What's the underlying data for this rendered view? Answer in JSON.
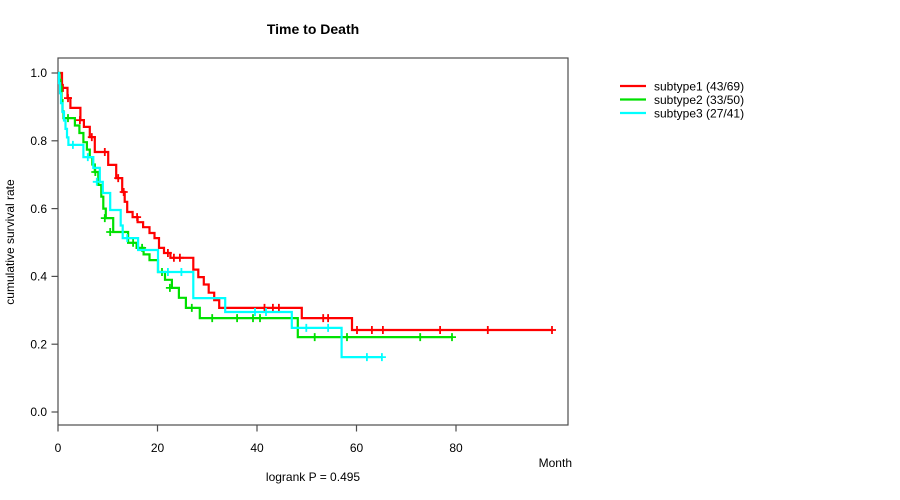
{
  "title": "Time to Death",
  "annotation": "logrank P = 0.495",
  "axes": {
    "x_label": "Month",
    "y_label": "cumulative survival rate"
  },
  "legend": {
    "position": "right-outside",
    "items": [
      {
        "label": "subtype1 (43/69)",
        "color": "#FF0000"
      },
      {
        "label": "subtype2 (33/50)",
        "color": "#00E000"
      },
      {
        "label": "subtype3 (27/41)",
        "color": "#00FFFF"
      }
    ]
  },
  "chart_data": {
    "type": "line",
    "variant": "kaplan-meier-step",
    "title": "Time to Death",
    "xlabel": "Month",
    "ylabel": "cumulative survival rate",
    "xlim": [
      0,
      102.5
    ],
    "ylim": [
      0,
      1.04
    ],
    "x_ticks": [
      0,
      20,
      40,
      60,
      80
    ],
    "y_ticks": [
      1.0,
      0.8,
      0.6,
      0.4,
      0.2,
      0.0
    ],
    "grid": false,
    "legend_position": "right-outside",
    "annotation": "logrank P = 0.495",
    "series": [
      {
        "name": "subtype1 (43/69)",
        "color": "#FF0000",
        "events": 43,
        "n": 69,
        "steps": [
          [
            0,
            1.0
          ],
          [
            0.8,
            0.956
          ],
          [
            1.9,
            0.926
          ],
          [
            2.5,
            0.897
          ],
          [
            4.5,
            0.861
          ],
          [
            5.2,
            0.841
          ],
          [
            6.4,
            0.811
          ],
          [
            7.4,
            0.767
          ],
          [
            10.1,
            0.729
          ],
          [
            11.7,
            0.69
          ],
          [
            12.9,
            0.649
          ],
          [
            13.4,
            0.62
          ],
          [
            13.9,
            0.59
          ],
          [
            15.0,
            0.575
          ],
          [
            16.0,
            0.56
          ],
          [
            17.1,
            0.545
          ],
          [
            18.4,
            0.528
          ],
          [
            19.4,
            0.513
          ],
          [
            20.3,
            0.484
          ],
          [
            21.3,
            0.469
          ],
          [
            22.6,
            0.455
          ],
          [
            27.2,
            0.42
          ],
          [
            28.2,
            0.398
          ],
          [
            29.3,
            0.376
          ],
          [
            30.3,
            0.352
          ],
          [
            31.4,
            0.33
          ],
          [
            32.4,
            0.307
          ],
          [
            49.0,
            0.277
          ],
          [
            59.1,
            0.242
          ]
        ],
        "end_time": 99.5,
        "censors": [
          [
            1.0,
            0.956
          ],
          [
            2.0,
            0.926
          ],
          [
            4.4,
            0.861
          ],
          [
            6.8,
            0.811
          ],
          [
            9.4,
            0.767
          ],
          [
            12.1,
            0.69
          ],
          [
            13.2,
            0.649
          ],
          [
            15.9,
            0.575
          ],
          [
            22.1,
            0.469
          ],
          [
            23.3,
            0.455
          ],
          [
            24.5,
            0.455
          ],
          [
            41.5,
            0.307
          ],
          [
            43.2,
            0.307
          ],
          [
            44.4,
            0.307
          ],
          [
            53.3,
            0.277
          ],
          [
            54.3,
            0.277
          ],
          [
            60.1,
            0.242
          ],
          [
            63.1,
            0.242
          ],
          [
            65.3,
            0.242
          ],
          [
            76.8,
            0.242
          ],
          [
            86.4,
            0.242
          ],
          [
            99.3,
            0.242
          ]
        ]
      },
      {
        "name": "subtype2 (33/50)",
        "color": "#00E000",
        "events": 33,
        "n": 50,
        "steps": [
          [
            0,
            1.0
          ],
          [
            0.3,
            0.98
          ],
          [
            0.5,
            0.96
          ],
          [
            0.7,
            0.92
          ],
          [
            0.9,
            0.887
          ],
          [
            1.1,
            0.867
          ],
          [
            3.4,
            0.845
          ],
          [
            4.3,
            0.823
          ],
          [
            5.1,
            0.796
          ],
          [
            5.8,
            0.774
          ],
          [
            6.4,
            0.752
          ],
          [
            6.9,
            0.73
          ],
          [
            7.4,
            0.708
          ],
          [
            8.1,
            0.67
          ],
          [
            8.7,
            0.635
          ],
          [
            9.1,
            0.6
          ],
          [
            9.6,
            0.572
          ],
          [
            11.1,
            0.531
          ],
          [
            14.1,
            0.499
          ],
          [
            15.8,
            0.484
          ],
          [
            17.2,
            0.465
          ],
          [
            18.4,
            0.448
          ],
          [
            20.1,
            0.413
          ],
          [
            21.5,
            0.39
          ],
          [
            22.9,
            0.366
          ],
          [
            24.3,
            0.337
          ],
          [
            25.7,
            0.307
          ],
          [
            28.5,
            0.277
          ],
          [
            48.2,
            0.221
          ]
        ],
        "end_time": 79.4,
        "censors": [
          [
            2.0,
            0.867
          ],
          [
            7.5,
            0.708
          ],
          [
            9.4,
            0.572
          ],
          [
            10.5,
            0.531
          ],
          [
            15.1,
            0.499
          ],
          [
            16.9,
            0.484
          ],
          [
            20.9,
            0.413
          ],
          [
            22.5,
            0.366
          ],
          [
            26.9,
            0.307
          ],
          [
            31.0,
            0.277
          ],
          [
            36.0,
            0.277
          ],
          [
            39.2,
            0.277
          ],
          [
            40.6,
            0.277
          ],
          [
            51.6,
            0.221
          ],
          [
            58.1,
            0.221
          ],
          [
            72.8,
            0.221
          ],
          [
            79.2,
            0.221
          ]
        ]
      },
      {
        "name": "subtype3 (27/41)",
        "color": "#00FFFF",
        "events": 27,
        "n": 41,
        "steps": [
          [
            0,
            1.0
          ],
          [
            0.2,
            0.97
          ],
          [
            0.4,
            0.94
          ],
          [
            0.6,
            0.911
          ],
          [
            0.9,
            0.885
          ],
          [
            1.2,
            0.86
          ],
          [
            1.5,
            0.835
          ],
          [
            1.8,
            0.81
          ],
          [
            2.1,
            0.788
          ],
          [
            5.1,
            0.752
          ],
          [
            7.1,
            0.72
          ],
          [
            8.4,
            0.679
          ],
          [
            9.0,
            0.646
          ],
          [
            10.5,
            0.596
          ],
          [
            12.6,
            0.55
          ],
          [
            13.0,
            0.513
          ],
          [
            16.1,
            0.478
          ],
          [
            20.1,
            0.413
          ],
          [
            27.2,
            0.336
          ],
          [
            33.6,
            0.295
          ],
          [
            47.0,
            0.248
          ],
          [
            57.0,
            0.162
          ]
        ],
        "end_time": 65.2,
        "censors": [
          [
            3.0,
            0.788
          ],
          [
            6.0,
            0.752
          ],
          [
            7.8,
            0.679
          ],
          [
            13.9,
            0.513
          ],
          [
            22.1,
            0.413
          ],
          [
            24.8,
            0.413
          ],
          [
            39.6,
            0.295
          ],
          [
            41.8,
            0.295
          ],
          [
            49.9,
            0.248
          ],
          [
            54.3,
            0.248
          ],
          [
            62.1,
            0.162
          ],
          [
            65.1,
            0.162
          ]
        ]
      }
    ]
  }
}
